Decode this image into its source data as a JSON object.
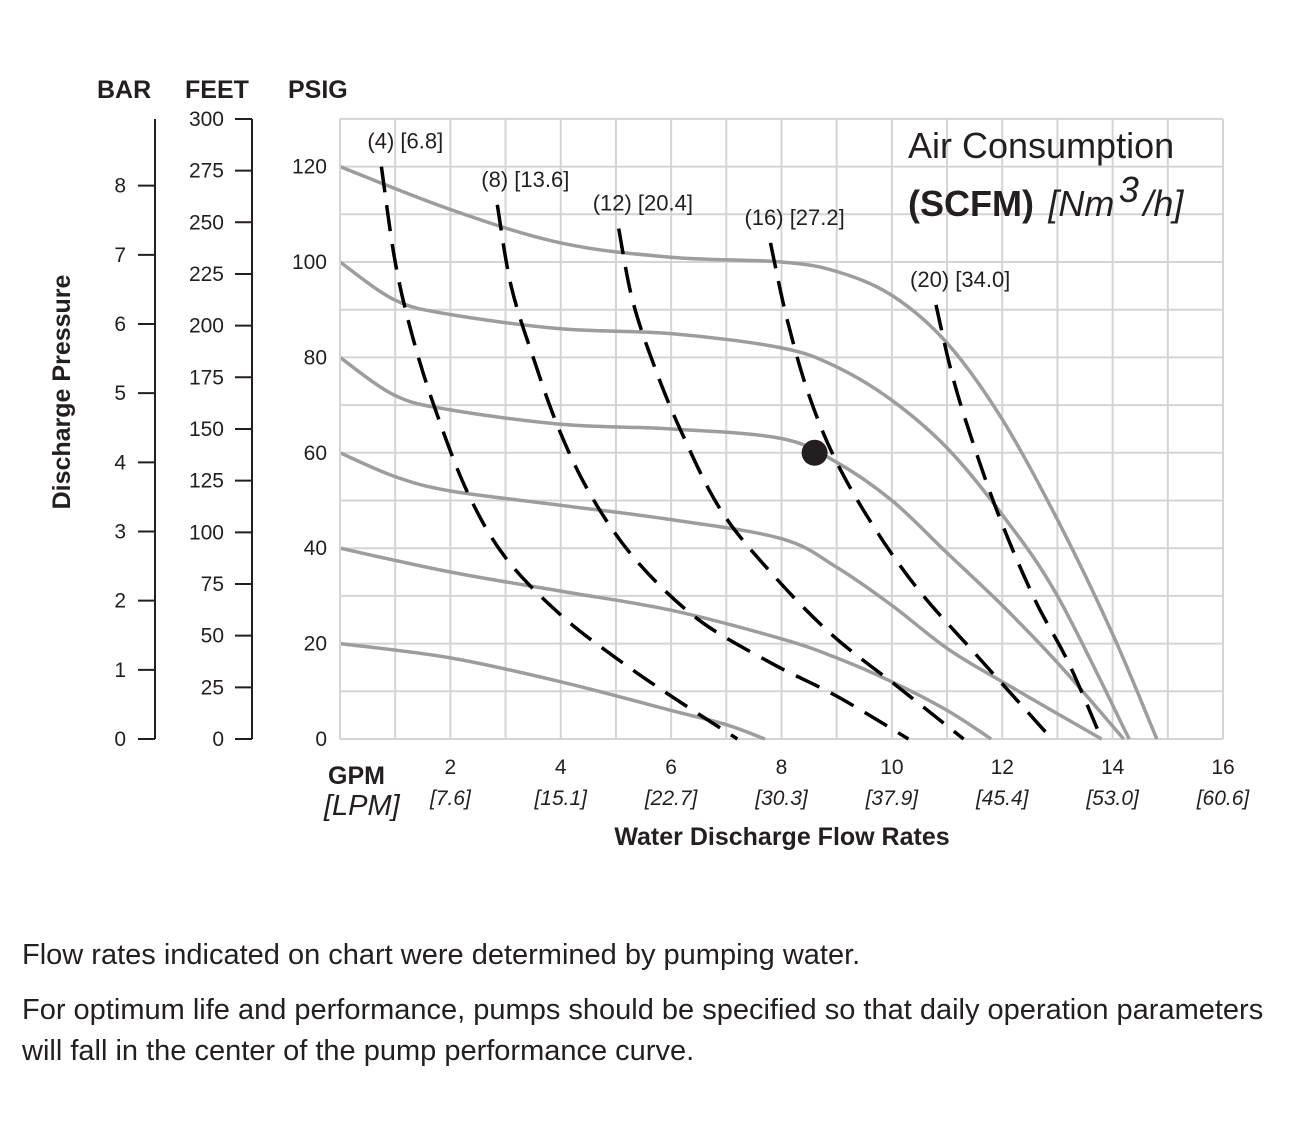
{
  "chart_data": {
    "type": "line",
    "xlabel": "Water Discharge Flow Rates",
    "ylabel": "Discharge Pressure",
    "x_unit": "GPM",
    "x_unit_secondary": "[LPM]",
    "xlim": [
      0,
      16
    ],
    "ylim": [
      0,
      130
    ],
    "grid": true,
    "x_ticks": [
      {
        "gpm": "2",
        "lpm": "[7.6]"
      },
      {
        "gpm": "4",
        "lpm": "[15.1]"
      },
      {
        "gpm": "6",
        "lpm": "[22.7]"
      },
      {
        "gpm": "8",
        "lpm": "[30.3]"
      },
      {
        "gpm": "10",
        "lpm": "[37.9]"
      },
      {
        "gpm": "12",
        "lpm": "[45.4]"
      },
      {
        "gpm": "14",
        "lpm": "[53.0]"
      },
      {
        "gpm": "16",
        "lpm": "[60.6]"
      }
    ],
    "y_axes": [
      {
        "label": "PSIG",
        "ticks": [
          0,
          20,
          40,
          60,
          80,
          100,
          120
        ]
      },
      {
        "label": "FEET",
        "ticks": [
          0,
          25,
          50,
          75,
          100,
          125,
          150,
          175,
          200,
          225,
          250,
          275,
          300
        ]
      },
      {
        "label": "BAR",
        "ticks": [
          0,
          1,
          2,
          3,
          4,
          5,
          6,
          7,
          8
        ]
      }
    ],
    "legend": {
      "title": "Air Consumption",
      "unit_bold": "(SCFM)",
      "unit_italic_pre": "[Nm",
      "unit_sup": "3",
      "unit_italic_post": "/h]"
    },
    "pressure_curves": [
      {
        "x": [
          0,
          2,
          4,
          6,
          8,
          9,
          10,
          11,
          12,
          13,
          14,
          14.8
        ],
        "y": [
          120,
          111,
          104,
          101,
          100,
          98,
          93,
          83,
          67,
          46,
          22,
          0
        ]
      },
      {
        "x": [
          0,
          1,
          2,
          4,
          6,
          8,
          9,
          10,
          11,
          12,
          13,
          14.3
        ],
        "y": [
          100,
          92,
          89,
          86,
          85,
          82,
          78,
          71,
          61,
          47,
          30,
          0
        ]
      },
      {
        "x": [
          0,
          1,
          2,
          4,
          6,
          8,
          9,
          10,
          11,
          12,
          13,
          14.2
        ],
        "y": [
          80,
          72,
          69,
          66,
          65,
          63,
          58,
          50,
          39,
          28,
          16,
          0
        ]
      },
      {
        "x": [
          0,
          1,
          2,
          4,
          6,
          8,
          9,
          10,
          11,
          12,
          13.8
        ],
        "y": [
          60,
          55,
          52,
          49,
          46,
          42,
          36,
          28,
          19,
          12,
          0
        ]
      },
      {
        "x": [
          0,
          2,
          4,
          6,
          8,
          9,
          10,
          11,
          11.8
        ],
        "y": [
          40,
          35,
          31,
          27,
          21,
          17,
          12,
          6,
          0
        ]
      },
      {
        "x": [
          0,
          2,
          4,
          6,
          7,
          7.7
        ],
        "y": [
          20,
          17,
          12,
          6,
          3,
          0
        ]
      }
    ],
    "air_curves": [
      {
        "label": "(4) [6.8]",
        "x": [
          0.75,
          1.0,
          1.3,
          1.7,
          2.3,
          3.0,
          4.0,
          5.0,
          6.0,
          7.2
        ],
        "y": [
          120,
          100,
          85,
          70,
          52,
          38,
          26,
          17,
          9,
          0
        ]
      },
      {
        "label": "(8) [13.6]",
        "x": [
          2.85,
          3.1,
          3.5,
          4.0,
          4.6,
          5.4,
          6.5,
          7.8,
          9.0,
          10.3
        ],
        "y": [
          112,
          95,
          80,
          64,
          50,
          37,
          25,
          16,
          9,
          0
        ]
      },
      {
        "label": "(12) [20.4]",
        "x": [
          5.05,
          5.3,
          5.7,
          6.2,
          6.9,
          7.8,
          8.9,
          10.1,
          11.3
        ],
        "y": [
          107,
          92,
          78,
          64,
          48,
          35,
          22,
          11,
          0
        ]
      },
      {
        "label": "(16) [27.2]",
        "x": [
          7.8,
          8.1,
          8.5,
          9.0,
          9.7,
          10.5,
          11.5,
          12.9
        ],
        "y": [
          104,
          88,
          72,
          58,
          44,
          31,
          18,
          0
        ]
      },
      {
        "label": "(20) [34.0]",
        "x": [
          10.8,
          11.1,
          11.5,
          12.0,
          12.6,
          13.2,
          13.8
        ],
        "y": [
          91,
          76,
          61,
          45,
          29,
          16,
          0
        ]
      }
    ],
    "marker": {
      "x": 8.6,
      "y": 60
    }
  },
  "notes": [
    "Flow rates indicated on chart were determined by pumping water.",
    "For optimum life and performance, pumps should be specified so that daily operation parameters will fall in the center of the pump performance curve."
  ]
}
